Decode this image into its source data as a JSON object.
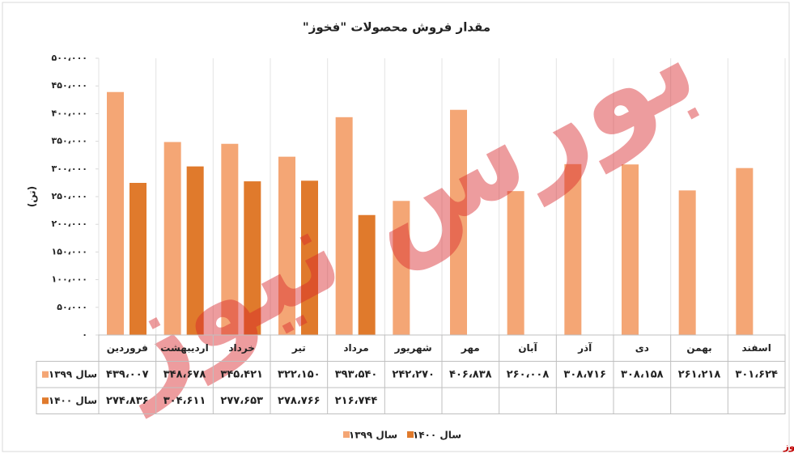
{
  "chart_data": {
    "type": "bar",
    "title": "مقدار فروش محصولات \"فخوز\"",
    "y_label": "(تن)",
    "categories": [
      "فروردین",
      "اردیبهشت",
      "خرداد",
      "تیر",
      "مرداد",
      "شهریور",
      "مهر",
      "آبان",
      "آذر",
      "دی",
      "بهمن",
      "اسفند"
    ],
    "series": [
      {
        "name": "سال ۱۳۹۹",
        "color": "#f4a675",
        "values": [
          439007,
          348678,
          345421,
          322150,
          393540,
          242270,
          406838,
          260008,
          308716,
          308158,
          261218,
          301624
        ],
        "value_labels": [
          "۴۳۹،۰۰۷",
          "۳۴۸،۶۷۸",
          "۳۴۵،۴۲۱",
          "۳۲۲،۱۵۰",
          "۳۹۳،۵۴۰",
          "۲۴۲،۲۷۰",
          "۴۰۶،۸۳۸",
          "۲۶۰،۰۰۸",
          "۳۰۸،۷۱۶",
          "۳۰۸،۱۵۸",
          "۲۶۱،۲۱۸",
          "۳۰۱،۶۲۴"
        ]
      },
      {
        "name": "سال ۱۴۰۰",
        "color": "#e07a2c",
        "values": [
          274836,
          304611,
          277653,
          278766,
          216744,
          null,
          null,
          null,
          null,
          null,
          null,
          null
        ],
        "value_labels": [
          "۲۷۴،۸۳۶",
          "۳۰۴،۶۱۱",
          "۲۷۷،۶۵۳",
          "۲۷۸،۷۶۶",
          "۲۱۶،۷۴۴",
          null,
          null,
          null,
          null,
          null,
          null,
          null
        ]
      }
    ],
    "ylim": [
      0,
      500000
    ],
    "yticks": [
      {
        "value": 0,
        "label": "۰"
      },
      {
        "value": 50000,
        "label": "۵۰،۰۰۰"
      },
      {
        "value": 100000,
        "label": "۱۰۰،۰۰۰"
      },
      {
        "value": 150000,
        "label": "۱۵۰،۰۰۰"
      },
      {
        "value": 200000,
        "label": "۲۰۰،۰۰۰"
      },
      {
        "value": 250000,
        "label": "۲۵۰،۰۰۰"
      },
      {
        "value": 300000,
        "label": "۳۰۰،۰۰۰"
      },
      {
        "value": 350000,
        "label": "۳۵۰،۰۰۰"
      },
      {
        "value": 400000,
        "label": "۴۰۰،۰۰۰"
      },
      {
        "value": 450000,
        "label": "۴۵۰،۰۰۰"
      },
      {
        "value": 500000,
        "label": "۵۰۰،۰۰۰"
      }
    ],
    "grid": true,
    "watermark": "بورس نیوز",
    "source": "بورس نیوز"
  }
}
